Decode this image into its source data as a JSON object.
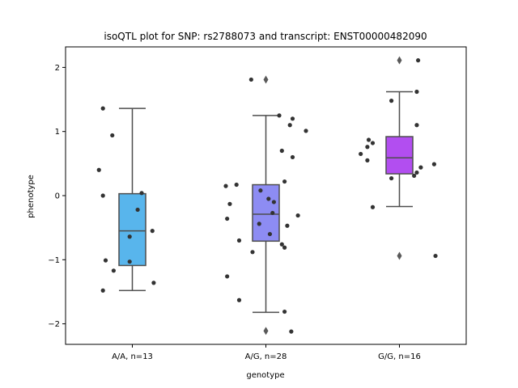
{
  "chart_data": {
    "type": "box",
    "title": "isoQTL plot for SNP: rs2788073 and transcript: ENST00000482090",
    "xlabel": "genotype",
    "ylabel": "phenotype",
    "ylim": [
      -2.32,
      2.32
    ],
    "yticks": [
      -2,
      -1,
      0,
      1,
      2
    ],
    "ytick_labels": [
      "−2",
      "−1",
      "0",
      "1",
      "2"
    ],
    "grid": false,
    "categories": [
      "A/A, n=13",
      "A/G, n=28",
      "G/G, n=16"
    ],
    "boxes": [
      {
        "category": "A/A, n=13",
        "color": "#58b5ec",
        "q1": -1.09,
        "median": -0.55,
        "q3": 0.03,
        "whisker_low": -1.48,
        "whisker_high": 1.36,
        "outliers": []
      },
      {
        "category": "A/G, n=28",
        "color": "#8d8cf3",
        "q1": -0.71,
        "median": -0.29,
        "q3": 0.17,
        "whisker_low": -1.82,
        "whisker_high": 1.25,
        "outliers": [
          1.81,
          -2.11
        ]
      },
      {
        "category": "G/G, n=16",
        "color": "#b24ef0",
        "q1": 0.34,
        "median": 0.59,
        "q3": 0.92,
        "whisker_low": -0.17,
        "whisker_high": 1.62,
        "outliers": [
          2.11,
          -0.94
        ]
      }
    ],
    "points": [
      {
        "category": "A/A, n=13",
        "values": [
          {
            "dx": -0.22,
            "y": 1.36
          },
          {
            "dx": -0.15,
            "y": 0.94
          },
          {
            "dx": -0.25,
            "y": 0.4
          },
          {
            "dx": -0.22,
            "y": 0.0
          },
          {
            "dx": 0.07,
            "y": 0.04
          },
          {
            "dx": 0.04,
            "y": -0.22
          },
          {
            "dx": 0.15,
            "y": -0.55
          },
          {
            "dx": -0.02,
            "y": -0.64
          },
          {
            "dx": -0.2,
            "y": -1.01
          },
          {
            "dx": -0.02,
            "y": -1.03
          },
          {
            "dx": -0.14,
            "y": -1.17
          },
          {
            "dx": 0.16,
            "y": -1.36
          },
          {
            "dx": -0.22,
            "y": -1.48
          }
        ]
      },
      {
        "category": "A/G, n=28",
        "values": [
          {
            "dx": -0.11,
            "y": 1.81
          },
          {
            "dx": 0.1,
            "y": 1.25
          },
          {
            "dx": 0.2,
            "y": 1.2
          },
          {
            "dx": 0.18,
            "y": 1.1
          },
          {
            "dx": 0.3,
            "y": 1.01
          },
          {
            "dx": 0.12,
            "y": 0.7
          },
          {
            "dx": 0.2,
            "y": 0.6
          },
          {
            "dx": 0.14,
            "y": 0.22
          },
          {
            "dx": -0.3,
            "y": 0.15
          },
          {
            "dx": -0.22,
            "y": 0.17
          },
          {
            "dx": -0.04,
            "y": 0.08
          },
          {
            "dx": 0.02,
            "y": -0.05
          },
          {
            "dx": 0.06,
            "y": -0.1
          },
          {
            "dx": -0.27,
            "y": -0.13
          },
          {
            "dx": 0.05,
            "y": -0.27
          },
          {
            "dx": 0.24,
            "y": -0.31
          },
          {
            "dx": -0.29,
            "y": -0.36
          },
          {
            "dx": -0.05,
            "y": -0.44
          },
          {
            "dx": 0.16,
            "y": -0.47
          },
          {
            "dx": 0.03,
            "y": -0.6
          },
          {
            "dx": -0.2,
            "y": -0.7
          },
          {
            "dx": 0.12,
            "y": -0.76
          },
          {
            "dx": 0.14,
            "y": -0.81
          },
          {
            "dx": -0.1,
            "y": -0.88
          },
          {
            "dx": -0.29,
            "y": -1.26
          },
          {
            "dx": -0.2,
            "y": -1.63
          },
          {
            "dx": 0.14,
            "y": -1.81
          },
          {
            "dx": 0.19,
            "y": -2.12
          }
        ]
      },
      {
        "category": "G/G, n=16",
        "values": [
          {
            "dx": 0.14,
            "y": 2.11
          },
          {
            "dx": 0.13,
            "y": 1.62
          },
          {
            "dx": -0.06,
            "y": 1.48
          },
          {
            "dx": 0.13,
            "y": 1.1
          },
          {
            "dx": -0.23,
            "y": 0.87
          },
          {
            "dx": -0.2,
            "y": 0.82
          },
          {
            "dx": -0.24,
            "y": 0.76
          },
          {
            "dx": -0.29,
            "y": 0.65
          },
          {
            "dx": -0.24,
            "y": 0.55
          },
          {
            "dx": 0.26,
            "y": 0.49
          },
          {
            "dx": 0.16,
            "y": 0.44
          },
          {
            "dx": 0.13,
            "y": 0.36
          },
          {
            "dx": 0.11,
            "y": 0.31
          },
          {
            "dx": -0.06,
            "y": 0.27
          },
          {
            "dx": -0.2,
            "y": -0.18
          },
          {
            "dx": 0.27,
            "y": -0.94
          }
        ]
      }
    ],
    "colors": {
      "box_edge": "#4d4d4d",
      "point": "#333333",
      "outlier": "#5a5a5a",
      "axes": "#000000"
    }
  }
}
